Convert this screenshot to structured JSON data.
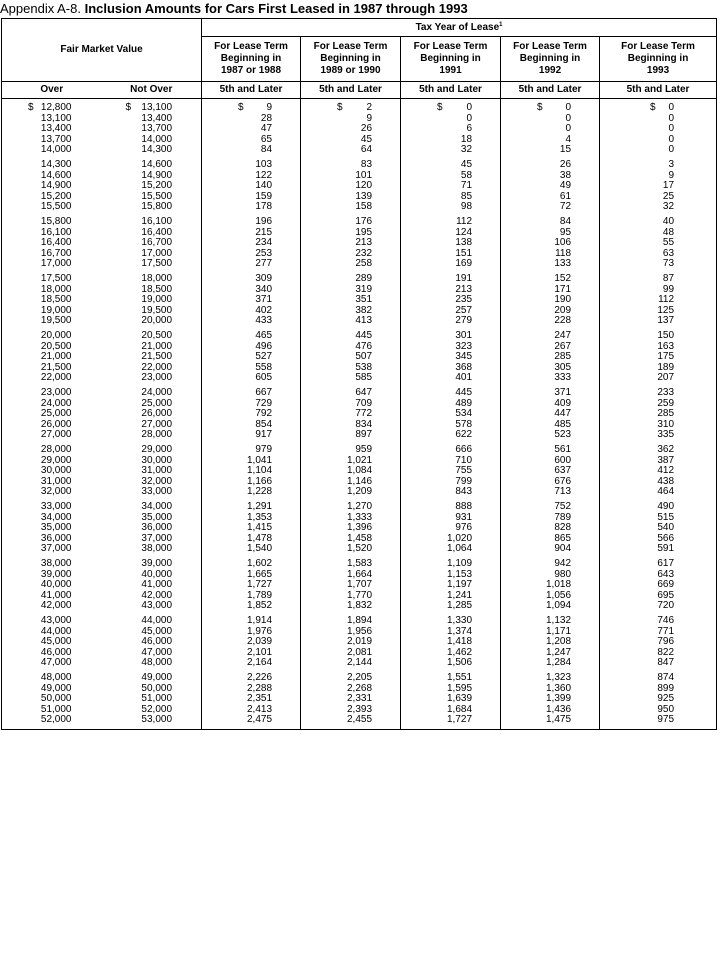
{
  "title": {
    "lead": "Appendix A-8.",
    "main": "Inclusion Amounts for Cars First Leased in 1987 through 1993"
  },
  "header": {
    "fair_market_value": "Fair Market Value",
    "tax_year": "Tax Year of Lease",
    "tax_year_footnote": "1",
    "terms": [
      [
        "For Lease Term",
        "Beginning in",
        "1987 or 1988"
      ],
      [
        "For Lease Term",
        "Beginning in",
        "1989 or 1990"
      ],
      [
        "For Lease Term",
        "Beginning in",
        "1991"
      ],
      [
        "For Lease Term",
        "Beginning in",
        "1992"
      ],
      [
        "For Lease Term",
        "Beginning in",
        "1993"
      ]
    ],
    "over": "Over",
    "not_over": "Not Over",
    "later": [
      "5th and Later",
      "5th and Later",
      "5th and Later",
      "5th and Later",
      "5th and Later"
    ]
  },
  "groups": [
    [
      [
        "$ 12,800",
        "$ 13,100",
        "$ 9",
        "$ 2",
        "$ 0",
        "$ 0",
        "$ 0"
      ],
      [
        "13,100",
        "13,400",
        "28",
        "9",
        "0",
        "0",
        "0"
      ],
      [
        "13,400",
        "13,700",
        "47",
        "26",
        "6",
        "0",
        "0"
      ],
      [
        "13,700",
        "14,000",
        "65",
        "45",
        "18",
        "4",
        "0"
      ],
      [
        "14,000",
        "14,300",
        "84",
        "64",
        "32",
        "15",
        "0"
      ]
    ],
    [
      [
        "14,300",
        "14,600",
        "103",
        "83",
        "45",
        "26",
        "3"
      ],
      [
        "14,600",
        "14,900",
        "122",
        "101",
        "58",
        "38",
        "9"
      ],
      [
        "14,900",
        "15,200",
        "140",
        "120",
        "71",
        "49",
        "17"
      ],
      [
        "15,200",
        "15,500",
        "159",
        "139",
        "85",
        "61",
        "25"
      ],
      [
        "15,500",
        "15,800",
        "178",
        "158",
        "98",
        "72",
        "32"
      ]
    ],
    [
      [
        "15,800",
        "16,100",
        "196",
        "176",
        "112",
        "84",
        "40"
      ],
      [
        "16,100",
        "16,400",
        "215",
        "195",
        "124",
        "95",
        "48"
      ],
      [
        "16,400",
        "16,700",
        "234",
        "213",
        "138",
        "106",
        "55"
      ],
      [
        "16,700",
        "17,000",
        "253",
        "232",
        "151",
        "118",
        "63"
      ],
      [
        "17,000",
        "17,500",
        "277",
        "258",
        "169",
        "133",
        "73"
      ]
    ],
    [
      [
        "17,500",
        "18,000",
        "309",
        "289",
        "191",
        "152",
        "87"
      ],
      [
        "18,000",
        "18,500",
        "340",
        "319",
        "213",
        "171",
        "99"
      ],
      [
        "18,500",
        "19,000",
        "371",
        "351",
        "235",
        "190",
        "112"
      ],
      [
        "19,000",
        "19,500",
        "402",
        "382",
        "257",
        "209",
        "125"
      ],
      [
        "19,500",
        "20,000",
        "433",
        "413",
        "279",
        "228",
        "137"
      ]
    ],
    [
      [
        "20,000",
        "20,500",
        "465",
        "445",
        "301",
        "247",
        "150"
      ],
      [
        "20,500",
        "21,000",
        "496",
        "476",
        "323",
        "267",
        "163"
      ],
      [
        "21,000",
        "21,500",
        "527",
        "507",
        "345",
        "285",
        "175"
      ],
      [
        "21,500",
        "22,000",
        "558",
        "538",
        "368",
        "305",
        "189"
      ],
      [
        "22,000",
        "23,000",
        "605",
        "585",
        "401",
        "333",
        "207"
      ]
    ],
    [
      [
        "23,000",
        "24,000",
        "667",
        "647",
        "445",
        "371",
        "233"
      ],
      [
        "24,000",
        "25,000",
        "729",
        "709",
        "489",
        "409",
        "259"
      ],
      [
        "25,000",
        "26,000",
        "792",
        "772",
        "534",
        "447",
        "285"
      ],
      [
        "26,000",
        "27,000",
        "854",
        "834",
        "578",
        "485",
        "310"
      ],
      [
        "27,000",
        "28,000",
        "917",
        "897",
        "622",
        "523",
        "335"
      ]
    ],
    [
      [
        "28,000",
        "29,000",
        "979",
        "959",
        "666",
        "561",
        "362"
      ],
      [
        "29,000",
        "30,000",
        "1,041",
        "1,021",
        "710",
        "600",
        "387"
      ],
      [
        "30,000",
        "31,000",
        "1,104",
        "1,084",
        "755",
        "637",
        "412"
      ],
      [
        "31,000",
        "32,000",
        "1,166",
        "1,146",
        "799",
        "676",
        "438"
      ],
      [
        "32,000",
        "33,000",
        "1,228",
        "1,209",
        "843",
        "713",
        "464"
      ]
    ],
    [
      [
        "33,000",
        "34,000",
        "1,291",
        "1,270",
        "888",
        "752",
        "490"
      ],
      [
        "34,000",
        "35,000",
        "1,353",
        "1,333",
        "931",
        "789",
        "515"
      ],
      [
        "35,000",
        "36,000",
        "1,415",
        "1,396",
        "976",
        "828",
        "540"
      ],
      [
        "36,000",
        "37,000",
        "1,478",
        "1,458",
        "1,020",
        "865",
        "566"
      ],
      [
        "37,000",
        "38,000",
        "1,540",
        "1,520",
        "1,064",
        "904",
        "591"
      ]
    ],
    [
      [
        "38,000",
        "39,000",
        "1,602",
        "1,583",
        "1,109",
        "942",
        "617"
      ],
      [
        "39,000",
        "40,000",
        "1,665",
        "1,664",
        "1,153",
        "980",
        "643"
      ],
      [
        "40,000",
        "41,000",
        "1,727",
        "1,707",
        "1,197",
        "1,018",
        "669"
      ],
      [
        "41,000",
        "42,000",
        "1,789",
        "1,770",
        "1,241",
        "1,056",
        "695"
      ],
      [
        "42,000",
        "43,000",
        "1,852",
        "1,832",
        "1,285",
        "1,094",
        "720"
      ]
    ],
    [
      [
        "43,000",
        "44,000",
        "1,914",
        "1,894",
        "1,330",
        "1,132",
        "746"
      ],
      [
        "44,000",
        "45,000",
        "1,976",
        "1,956",
        "1,374",
        "1,171",
        "771"
      ],
      [
        "45,000",
        "46,000",
        "2,039",
        "2,019",
        "1,418",
        "1,208",
        "796"
      ],
      [
        "46,000",
        "47,000",
        "2,101",
        "2,081",
        "1,462",
        "1,247",
        "822"
      ],
      [
        "47,000",
        "48,000",
        "2,164",
        "2,144",
        "1,506",
        "1,284",
        "847"
      ]
    ],
    [
      [
        "48,000",
        "49,000",
        "2,226",
        "2,205",
        "1,551",
        "1,323",
        "874"
      ],
      [
        "49,000",
        "50,000",
        "2,288",
        "2,268",
        "1,595",
        "1,360",
        "899"
      ],
      [
        "50,000",
        "51,000",
        "2,351",
        "2,331",
        "1,639",
        "1,399",
        "925"
      ],
      [
        "51,000",
        "52,000",
        "2,413",
        "2,393",
        "1,684",
        "1,436",
        "950"
      ],
      [
        "52,000",
        "53,000",
        "2,475",
        "2,455",
        "1,727",
        "1,475",
        "975"
      ]
    ]
  ]
}
